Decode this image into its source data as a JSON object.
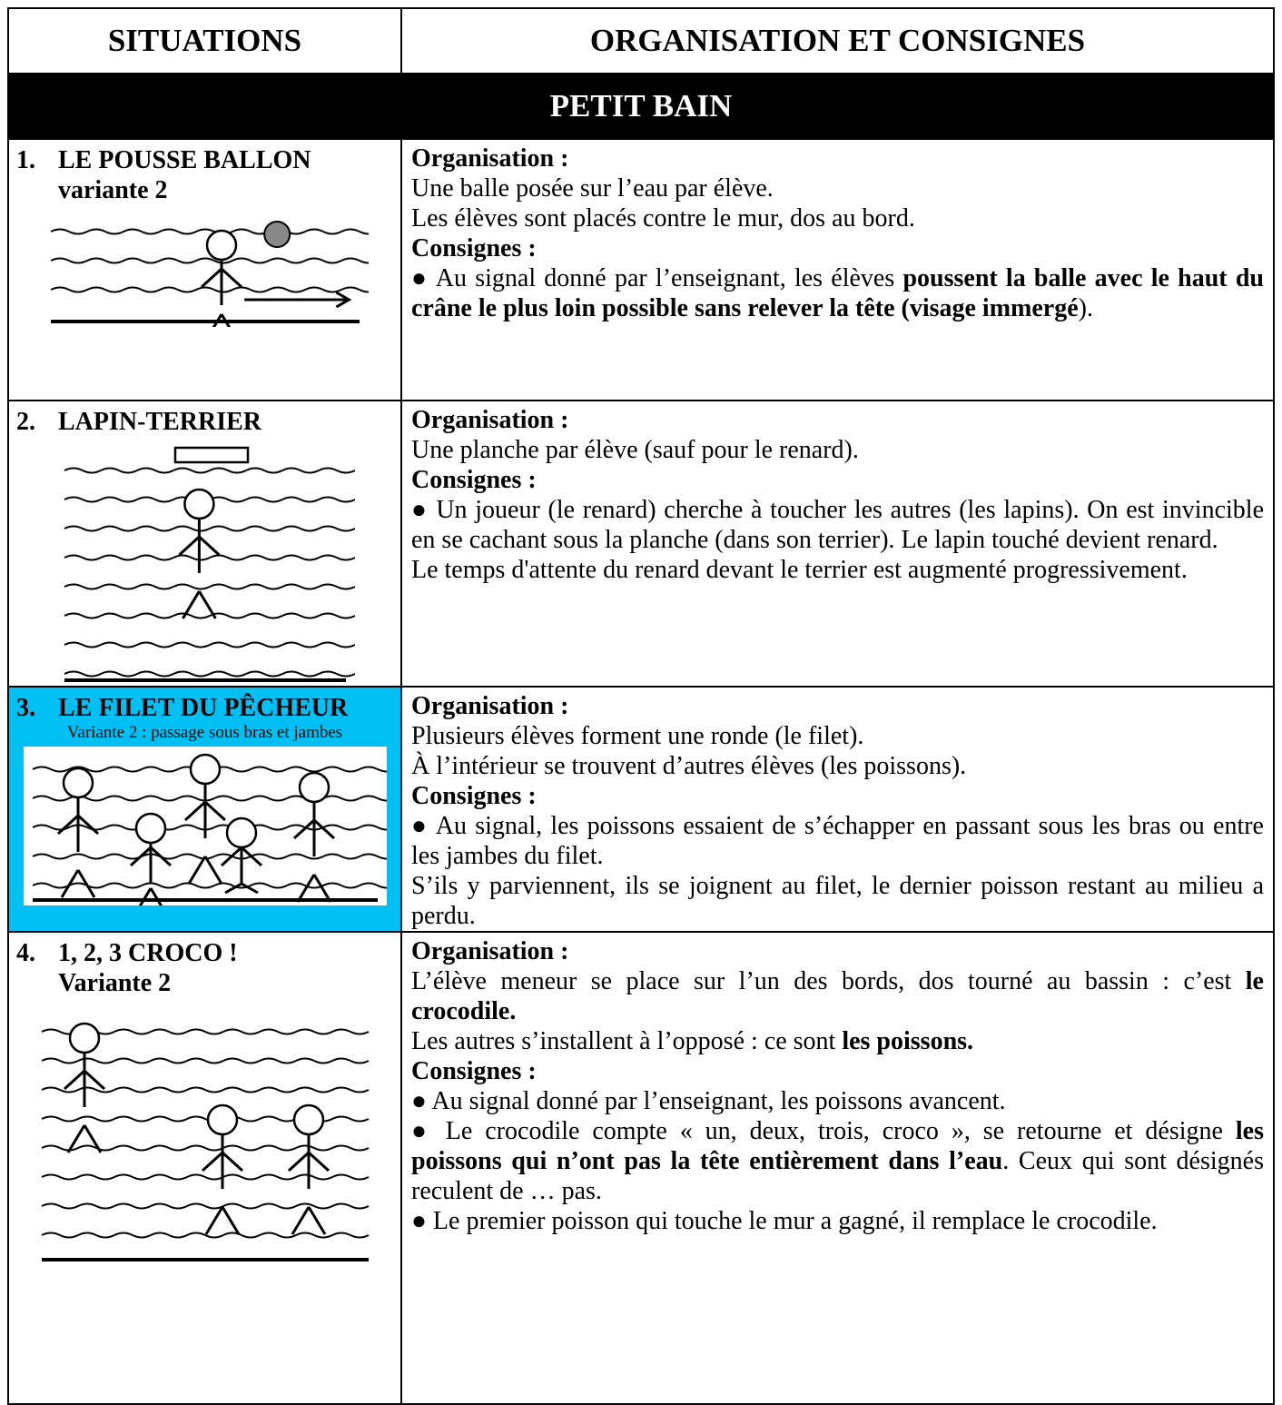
{
  "table": {
    "headers": [
      "SITUATIONS",
      "ORGANISATION ET CONSIGNES"
    ],
    "section": "PETIT BAIN",
    "rows": [
      {
        "number": "1.",
        "title": "LE POUSSE BALLON",
        "subtitle": "variante 2",
        "organisation_label": "Organisation :",
        "organisation": [
          [
            "Une balle posée sur l’eau par élève."
          ],
          [
            "Les élèves sont placés contre le mur, dos au bord."
          ]
        ],
        "consignes_label": "Consignes :",
        "consignes": [
          [
            "● Au signal donné par l’enseignant, les élèves ",
            {
              "text": "poussent la balle avec le haut du crâne le plus loin possible sans relever la tête (visage immergé",
              "bold": true
            },
            ")."
          ]
        ]
      },
      {
        "number": "2.",
        "title": "LAPIN-TERRIER",
        "organisation_label": "Organisation :",
        "organisation": [
          [
            "Une planche par élève (sauf pour le renard)."
          ]
        ],
        "consignes_label": "Consignes :",
        "consignes": [
          [
            "● Un joueur (le renard) cherche à toucher les autres (les lapins). On est invincible en se cachant sous la planche (dans son terrier). Le lapin touché devient renard."
          ],
          [
            "Le temps d'attente du renard devant le terrier est augmenté progressivement."
          ]
        ]
      },
      {
        "number": "3.",
        "title": "LE FILET DU PÊCHEUR",
        "subtitle": "Variante 2 : passage sous  bras et jambes",
        "highlight": "#00bff3",
        "organisation_label": "Organisation :",
        "organisation": [
          [
            "Plusieurs élèves forment une ronde (le filet)."
          ],
          [
            "À l’intérieur se trouvent d’autres élèves (les poissons)."
          ]
        ],
        "consignes_label": "Consignes :",
        "consignes": [
          [
            "● Au signal, les poissons essaient de s’échapper en passant sous les bras ou entre les jambes du filet."
          ],
          [
            "S’ils y parviennent, ils se joignent au filet, le dernier poisson restant au milieu a perdu."
          ]
        ]
      },
      {
        "number": "4.",
        "title": "1, 2, 3 CROCO !",
        "subtitle": "Variante 2",
        "organisation_label": "Organisation :",
        "organisation": [
          [
            "L’élève meneur se place sur l’un des bords, dos tourné au bassin : c’est ",
            {
              "text": "le crocodile.",
              "bold": true
            }
          ],
          [
            "Les autres s’installent à l’opposé : ce sont ",
            {
              "text": "les poissons.",
              "bold": true
            }
          ]
        ],
        "consignes_label": "Consignes :",
        "consignes": [
          [
            "● Au signal donné par l’enseignant, les poissons avancent."
          ],
          [
            "● Le crocodile compte « un, deux, trois, croco », se retourne et désigne ",
            {
              "text": "les poissons qui n’ont pas la tête entièrement dans l’eau",
              "bold": true
            },
            ". Ceux qui sont désignés reculent de … pas."
          ],
          [
            "● Le premier poisson qui touche le mur a gagné, il remplace le crocodile."
          ]
        ]
      }
    ]
  }
}
